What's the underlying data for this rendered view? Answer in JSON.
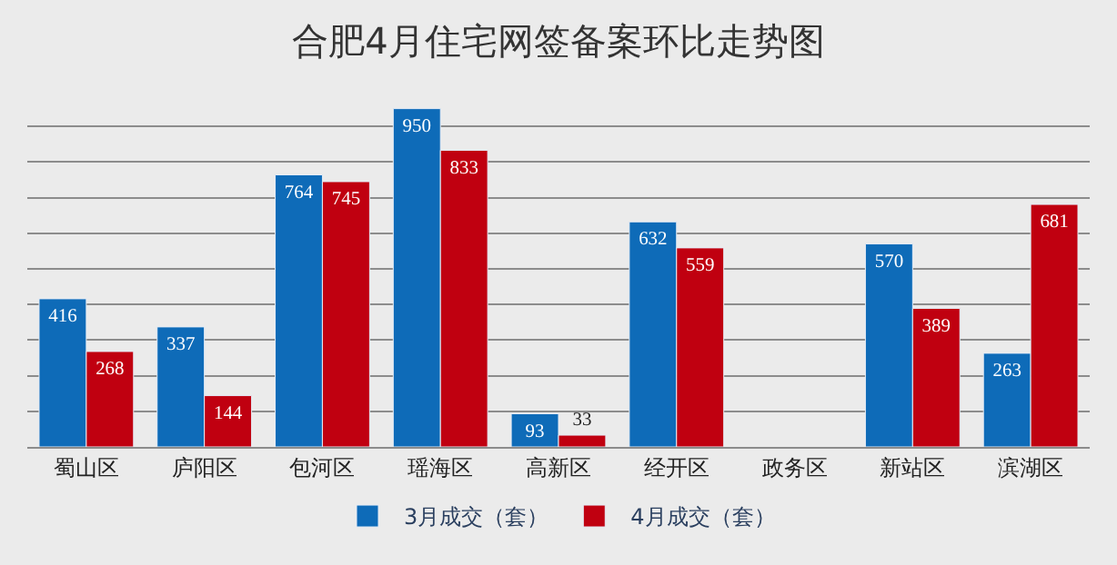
{
  "chart_data": {
    "type": "bar",
    "title": "合肥4月住宅网签备案环比走势图",
    "categories": [
      "蜀山区",
      "庐阳区",
      "包河区",
      "瑶海区",
      "高新区",
      "经开区",
      "政务区",
      "新站区",
      "滨湖区"
    ],
    "series": [
      {
        "name": "3月成交（套）",
        "color": "#0e6bb8",
        "values": [
          416,
          337,
          764,
          950,
          93,
          632,
          null,
          570,
          263
        ]
      },
      {
        "name": "4月成交（套）",
        "color": "#c00010",
        "values": [
          268,
          144,
          745,
          833,
          33,
          559,
          null,
          389,
          681
        ]
      }
    ],
    "tick_labels": "x",
    "grid": "y",
    "data_labels": true,
    "legend": "bottom"
  }
}
